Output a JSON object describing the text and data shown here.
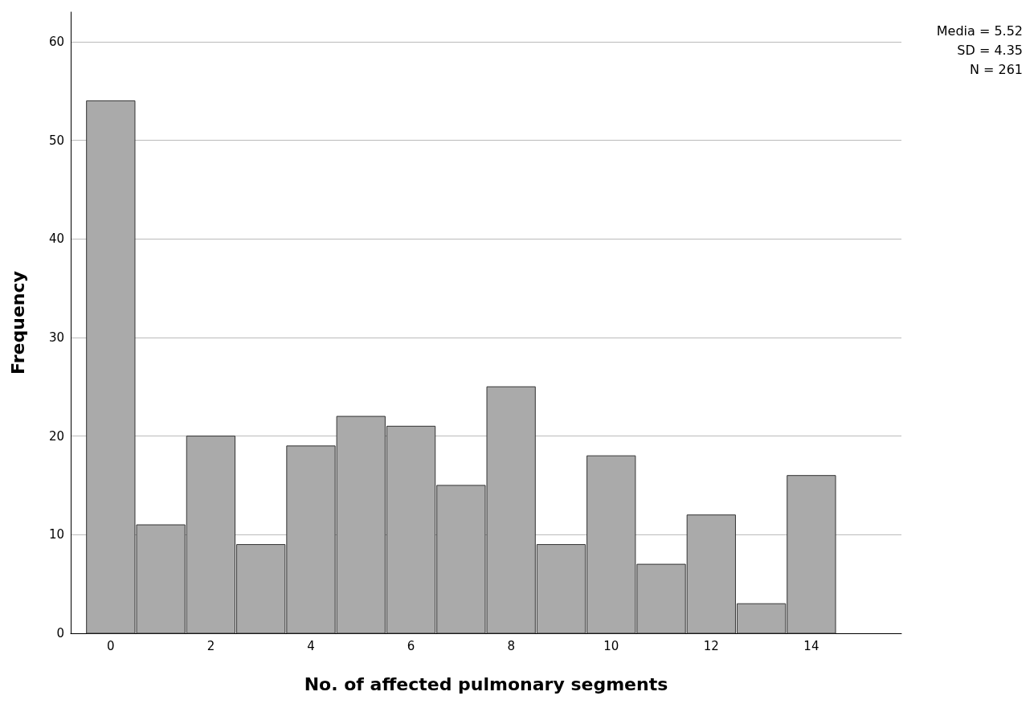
{
  "chart_data": {
    "type": "histogram",
    "xlabel": "No. of affected pulmonary segments",
    "ylabel": "Frequency",
    "bins": [
      -0.5,
      0.5,
      1.5,
      2.5,
      3.5,
      4.5,
      5.5,
      6.5,
      7.5,
      8.5,
      9.5,
      10.5,
      11.5,
      12.5,
      13.5,
      14.5
    ],
    "values": [
      54,
      11,
      20,
      9,
      19,
      22,
      21,
      15,
      25,
      9,
      18,
      7,
      12,
      3,
      16
    ],
    "color": "#aaaaaa",
    "xlim": [
      -0.8,
      15.8
    ],
    "xticks": [
      0,
      2,
      4,
      6,
      8,
      10,
      12,
      14
    ],
    "ylim": [
      0,
      63
    ],
    "yticks": [
      0,
      10,
      20,
      30,
      40,
      50,
      60
    ],
    "grid": "y",
    "annotations": [
      "Media = 5.52",
      "SD = 4.35",
      "N = 261"
    ]
  }
}
